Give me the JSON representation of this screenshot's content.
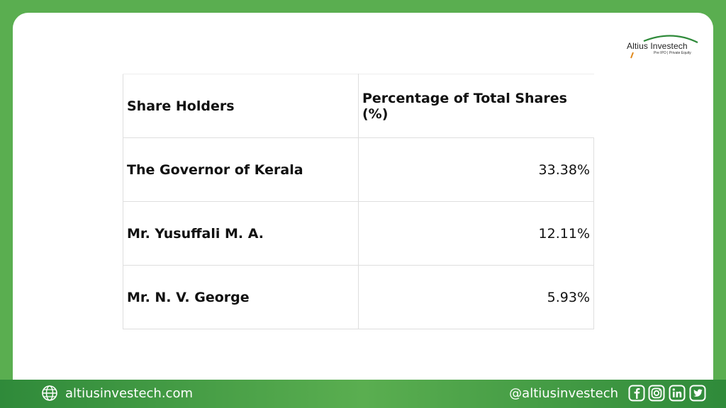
{
  "brand": {
    "name": "Altius Investech",
    "tagline": "Pre IPO | Private Equity",
    "accent": "#5aae50"
  },
  "table": {
    "headers": [
      "Share Holders",
      "Percentage of Total Shares (%)"
    ],
    "rows": [
      [
        "The Governor of Kerala",
        "33.38%"
      ],
      [
        "Mr. Yusuffali M. A.",
        "12.11%"
      ],
      [
        "Mr. N. V. George",
        "5.93%"
      ]
    ]
  },
  "footer": {
    "website": "altiusinvestech.com",
    "handle": "@altiusinvestech",
    "icons": [
      "globe-icon",
      "facebook-icon",
      "instagram-icon",
      "linkedin-icon",
      "twitter-icon"
    ]
  }
}
